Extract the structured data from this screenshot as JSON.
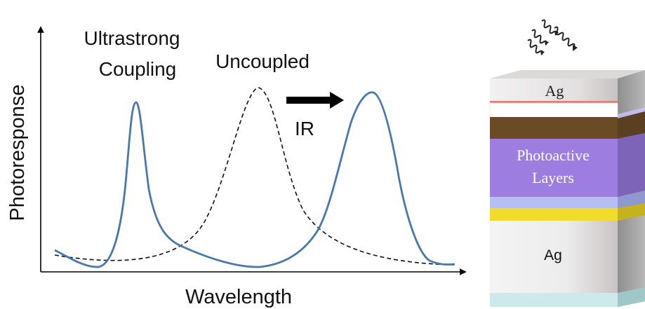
{
  "plot": {
    "ylabel": "Photoresponse",
    "xlabel": "Wavelength",
    "annotations": {
      "ultrastrong_line1": "Ultrastrong",
      "ultrastrong_line2": "Coupling",
      "uncoupled": "Uncoupled",
      "ir": "IR"
    },
    "colors": {
      "coupled_curve": "#4a78a8",
      "uncoupled_curve": "#111111",
      "arrow": "#000000"
    }
  },
  "device": {
    "layers": {
      "top_ag": "Ag",
      "photoactive_line1": "Photoactive",
      "photoactive_line2": "Layers",
      "bottom_ag": "Ag"
    },
    "colors": {
      "top_ag": "#e9e7e7",
      "pink_line": "#e87a7a",
      "brown": "#6b4a26",
      "photoactive": "#9d7ee0",
      "light_blue": "#b7bff2",
      "yellow": "#f0dc2a",
      "bottom_ag": "#eeeeee",
      "substrate": "#cde9ea"
    }
  }
}
